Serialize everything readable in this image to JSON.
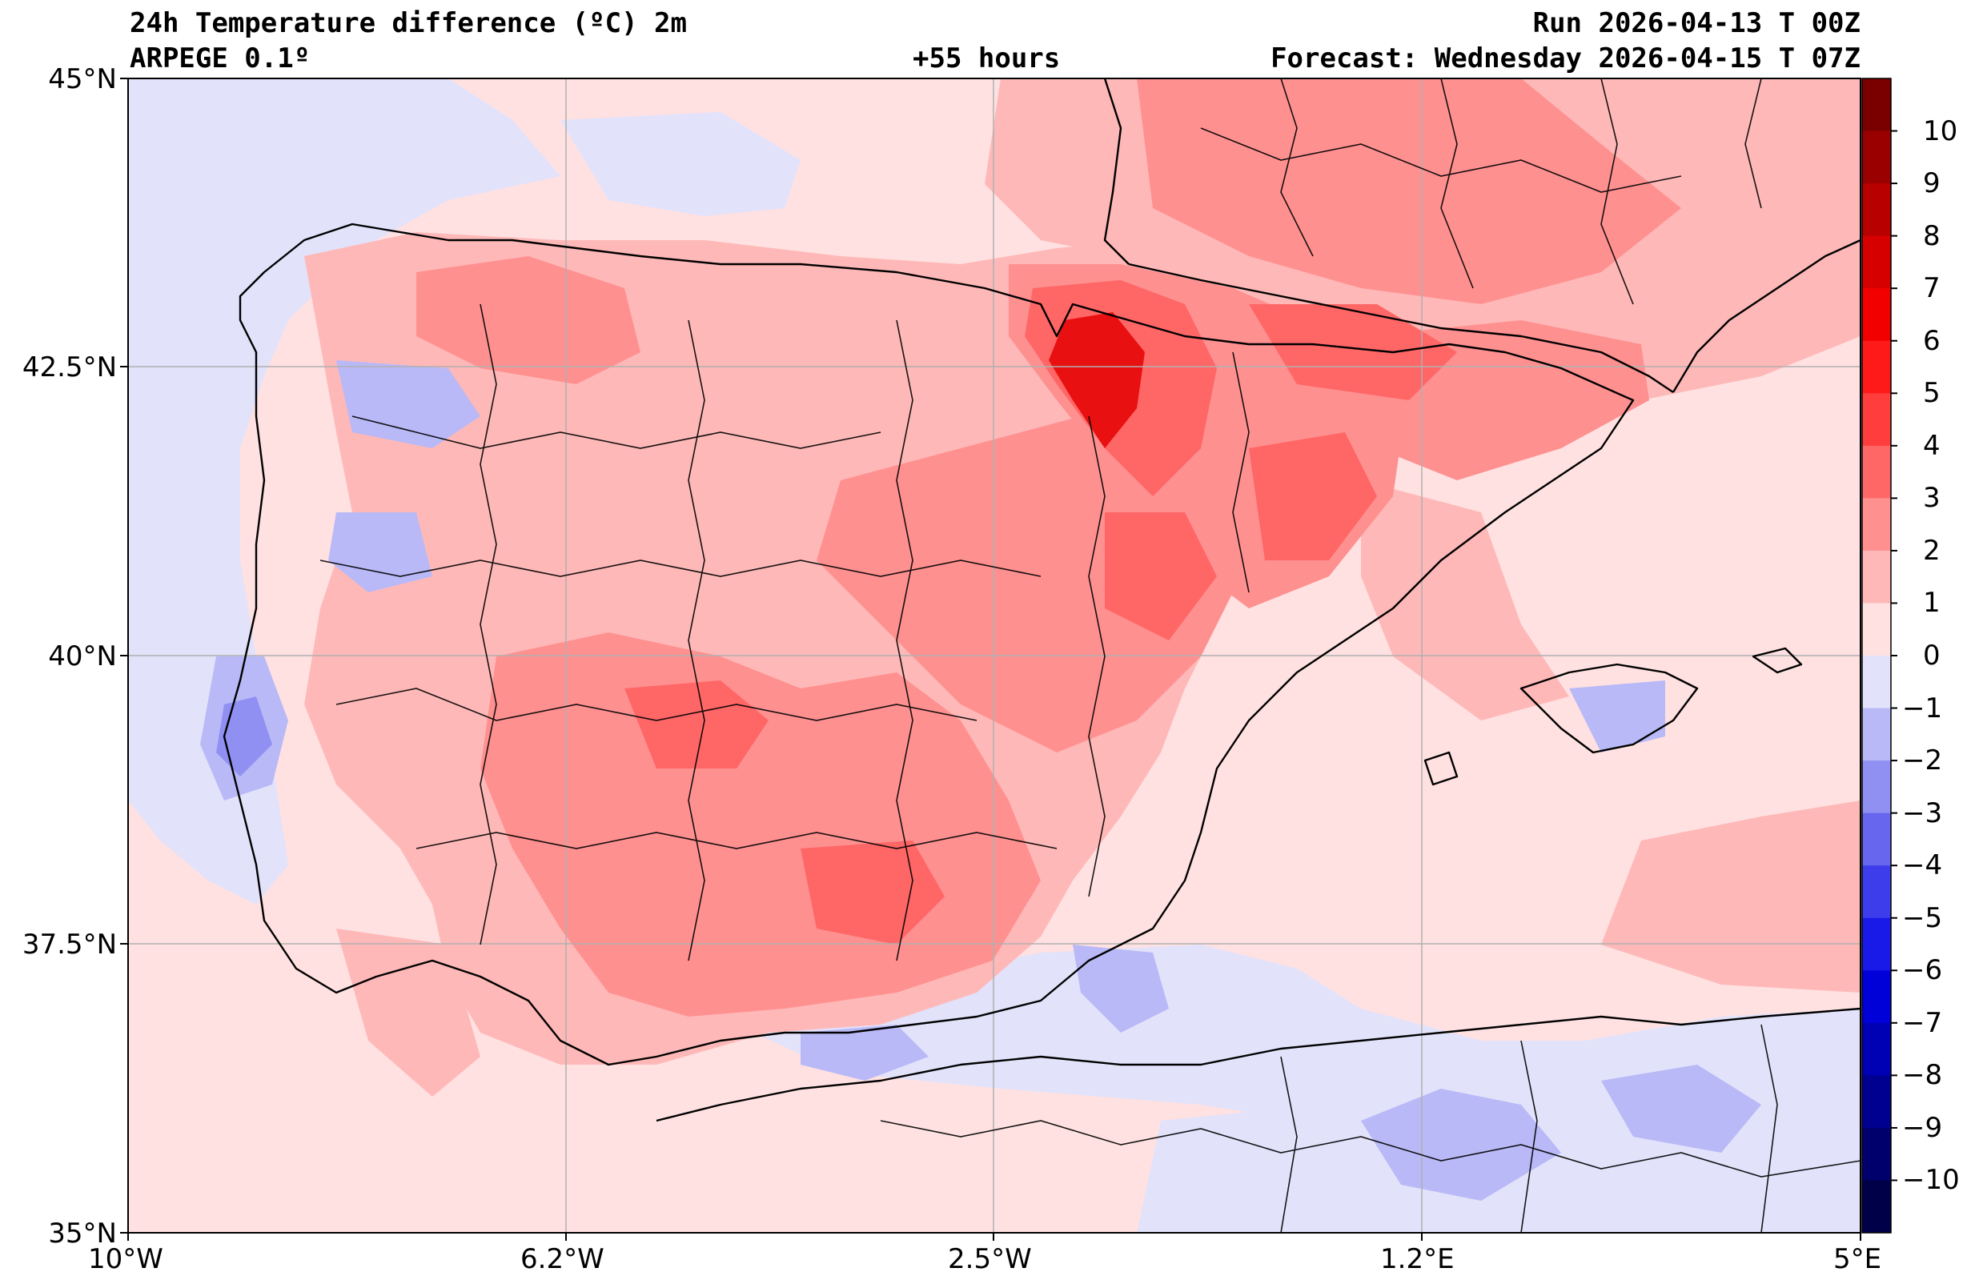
{
  "header": {
    "title": "24h Temperature difference (ºC) 2m",
    "model": "ARPEGE 0.1º",
    "lead": "+55 hours",
    "run": "Run 2026-04-13 T 00Z",
    "forecast": "Forecast: Wednesday 2026-04-15 T 07Z"
  },
  "axes": {
    "lat_labels": [
      "45°N",
      "42.5°N",
      "40°N",
      "37.5°N",
      "35°N"
    ],
    "lon_labels": [
      "10°W",
      "6.2°W",
      "2.5°W",
      "1.2°E",
      "5°E"
    ],
    "lat_range": [
      35,
      45
    ],
    "lon_range": [
      -10,
      5
    ]
  },
  "colorbar": {
    "labels": [
      "10",
      "9",
      "8",
      "7",
      "6",
      "5",
      "4",
      "3",
      "2",
      "1",
      "0",
      "−1",
      "−2",
      "−3",
      "−4",
      "−5",
      "−6",
      "−7",
      "−8",
      "−9",
      "−10"
    ],
    "colors": [
      "#7a0000",
      "#9a0000",
      "#b80000",
      "#d60000",
      "#f20000",
      "#ff1a1a",
      "#ff3d3d",
      "#ff6666",
      "#ff9090",
      "#ffb8b8",
      "#ffe1e1",
      "#e2e2fb",
      "#b9b9f7",
      "#9090f3",
      "#6666ef",
      "#3d3dec",
      "#1a1ae8",
      "#0000d8",
      "#0000b4",
      "#000090",
      "#00006c",
      "#000048"
    ],
    "range": [
      -11,
      11
    ]
  },
  "palette": {
    "ocean": "#e2e2fb",
    "base": "#ffe1e1",
    "warm1": "#ffb8b8",
    "warm2": "#ff9090",
    "warm3": "#ff6666",
    "warm4": "#ff3d3d",
    "warm5": "#e81010",
    "cool1": "#b9b9f7",
    "cool2": "#9090f3",
    "border": "#000000",
    "grid": "#b0b0b0"
  }
}
